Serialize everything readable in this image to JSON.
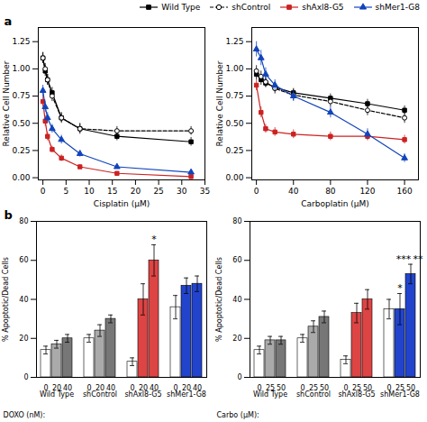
{
  "chart_data": [
    {
      "type": "line",
      "title": "a",
      "xlabel": "Cisplatin (μM)",
      "ylabel": "Relative Cell Number",
      "x": [
        0,
        0.5,
        1,
        2,
        4,
        8,
        16,
        32
      ],
      "xlim": [
        -1,
        35
      ],
      "xticks": [
        0,
        5,
        10,
        15,
        20,
        25,
        30,
        35
      ],
      "ylim": [
        -0.02,
        1.38
      ],
      "yticks": [
        {
          "value": 0,
          "label": "0.00"
        },
        0.25,
        {
          "value": 0.5,
          "label": "0.50"
        },
        0.75,
        {
          "value": 1,
          "label": "1.00"
        },
        1.25
      ],
      "grid": false,
      "legend": "upper right",
      "series": [
        {
          "name": "Wild Type",
          "color": "#000000",
          "marker": "square",
          "line_style": "solid",
          "values": [
            1.1,
            0.98,
            0.9,
            0.78,
            0.55,
            0.45,
            0.38,
            0.33
          ],
          "errors": [
            0.05,
            0.05,
            0.05,
            0.05,
            0.05,
            0.05,
            0.04,
            0.04
          ]
        },
        {
          "name": "shControl",
          "color": "#000000",
          "marker": "open_circle",
          "line_style": "dashed",
          "values": [
            1.1,
            1.0,
            0.9,
            0.75,
            0.55,
            0.45,
            0.43,
            0.43
          ],
          "errors": [
            0.05,
            0.05,
            0.05,
            0.05,
            0.04,
            0.04,
            0.04,
            0.04
          ]
        },
        {
          "name": "shAxl8-G5",
          "color": "#cc2222",
          "marker": "square",
          "line_style": "solid",
          "values": [
            0.7,
            0.52,
            0.38,
            0.26,
            0.18,
            0.1,
            0.04,
            0.01
          ],
          "errors": [
            0.05,
            0.05,
            0.04,
            0.03,
            0.03,
            0.02,
            0.01,
            0.01
          ]
        },
        {
          "name": "shMer1-G8",
          "color": "#1144bb",
          "marker": "triangle",
          "line_style": "solid",
          "values": [
            0.8,
            0.65,
            0.55,
            0.45,
            0.35,
            0.22,
            0.1,
            0.05
          ],
          "errors": [
            0.05,
            0.05,
            0.05,
            0.04,
            0.04,
            0.03,
            0.02,
            0.02
          ]
        }
      ]
    },
    {
      "type": "line",
      "xlabel": "Carboplatin (μM)",
      "ylabel": "Relative Cell Number",
      "x": [
        0,
        5,
        10,
        20,
        40,
        80,
        120,
        160
      ],
      "xlim": [
        -5,
        175
      ],
      "xticks": [
        0,
        40,
        80,
        120,
        160
      ],
      "ylim": [
        -0.02,
        1.38
      ],
      "yticks": [
        {
          "value": 0,
          "label": "0.00"
        },
        0.25,
        {
          "value": 0.5,
          "label": "0.50"
        },
        0.75,
        {
          "value": 1,
          "label": "1.00"
        },
        1.25
      ],
      "grid": false,
      "series": [
        {
          "name": "Wild Type",
          "color": "#000000",
          "marker": "square",
          "line_style": "solid",
          "values": [
            0.95,
            0.9,
            0.87,
            0.83,
            0.78,
            0.73,
            0.68,
            0.62
          ],
          "errors": [
            0.05,
            0.05,
            0.04,
            0.04,
            0.04,
            0.04,
            0.04,
            0.04
          ]
        },
        {
          "name": "shControl",
          "color": "#000000",
          "marker": "open_circle",
          "line_style": "dashed",
          "values": [
            0.98,
            0.93,
            0.88,
            0.82,
            0.76,
            0.7,
            0.62,
            0.55
          ],
          "errors": [
            0.05,
            0.05,
            0.05,
            0.05,
            0.05,
            0.05,
            0.05,
            0.05
          ]
        },
        {
          "name": "shAxl8-G5",
          "color": "#cc2222",
          "marker": "square",
          "line_style": "solid",
          "values": [
            0.85,
            0.6,
            0.45,
            0.42,
            0.4,
            0.38,
            0.38,
            0.35
          ],
          "errors": [
            0.05,
            0.05,
            0.04,
            0.04,
            0.04,
            0.04,
            0.04,
            0.04
          ]
        },
        {
          "name": "shMer1-G8",
          "color": "#1144bb",
          "marker": "triangle",
          "line_style": "solid",
          "values": [
            1.18,
            1.1,
            0.95,
            0.85,
            0.75,
            0.6,
            0.4,
            0.18
          ],
          "errors": [
            0.07,
            0.07,
            0.06,
            0.05,
            0.05,
            0.05,
            0.05,
            0.04
          ]
        }
      ]
    },
    {
      "type": "bar",
      "title": "b",
      "xlabel": "DOXO (nM):",
      "ylabel": "% Apoptotic/Dead Cells",
      "categories": [
        "Wild Type",
        "shControl",
        "shAxl8-G5",
        "shMer1-G8"
      ],
      "ylim": [
        0,
        80
      ],
      "yticks": [
        0,
        20,
        40,
        60,
        80
      ],
      "grid": false,
      "series": [
        {
          "name": "0",
          "colors": [
            "#ffffff",
            "#ffffff",
            "#ffffff",
            "#ffffff"
          ],
          "values": [
            14,
            20,
            8,
            36
          ],
          "errors": [
            2,
            2,
            2,
            6
          ]
        },
        {
          "name": "20",
          "colors": [
            "#aaaaaa",
            "#aaaaaa",
            "#dd4444",
            "#2244cc"
          ],
          "values": [
            17,
            24,
            40,
            47
          ],
          "errors": [
            2,
            3,
            8,
            4
          ]
        },
        {
          "name": "40",
          "colors": [
            "#777777",
            "#777777",
            "#dd4444",
            "#2244cc"
          ],
          "values": [
            20,
            30,
            60,
            48
          ],
          "errors": [
            2,
            2,
            8,
            4
          ]
        }
      ],
      "annotations": [
        {
          "text": "*",
          "category": "shAxl8-G5",
          "series": "40",
          "y": 69
        }
      ]
    },
    {
      "type": "bar",
      "xlabel": "Carbo (μM):",
      "ylabel": "% Apoptotic/Dead Cells",
      "categories": [
        "Wild Type",
        "shControl",
        "shAxl8-G5",
        "shMer1-G8"
      ],
      "ylim": [
        0,
        80
      ],
      "yticks": [
        0,
        20,
        40,
        60,
        80
      ],
      "grid": false,
      "series": [
        {
          "name": "0",
          "colors": [
            "#ffffff",
            "#ffffff",
            "#ffffff",
            "#ffffff"
          ],
          "values": [
            14,
            20,
            9,
            35
          ],
          "errors": [
            2,
            2,
            2,
            5
          ]
        },
        {
          "name": "25",
          "colors": [
            "#aaaaaa",
            "#aaaaaa",
            "#dd4444",
            "#2244cc"
          ],
          "values": [
            19,
            26,
            33,
            35
          ],
          "errors": [
            2,
            3,
            5,
            8
          ]
        },
        {
          "name": "50",
          "colors": [
            "#777777",
            "#777777",
            "#dd4444",
            "#2244cc"
          ],
          "values": [
            19,
            31,
            40,
            53
          ],
          "errors": [
            2,
            3,
            5,
            5
          ]
        }
      ],
      "annotations": [
        {
          "text": "*",
          "category": "shMer1-G8",
          "series": "25",
          "y": 44
        },
        {
          "text": "***",
          "category": "shMer1-G8",
          "series": "50",
          "y": 59
        },
        {
          "text": "**",
          "category": "shMer1-G8",
          "series": "50",
          "y": 59
        }
      ]
    }
  ]
}
